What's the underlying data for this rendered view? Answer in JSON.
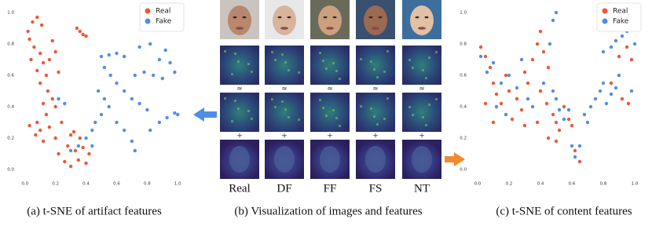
{
  "chart_data": [
    {
      "type": "scatter",
      "legend": "upper right",
      "grid": false,
      "xlim": [
        -0.05,
        1.05
      ],
      "ylim": [
        -0.05,
        1.05
      ],
      "xticks": [
        {
          "value": 0,
          "label": "0.0"
        },
        0.2,
        0.4,
        0.6,
        0.8,
        {
          "value": 1,
          "label": "1.0"
        }
      ],
      "yticks": [
        {
          "value": 0,
          "label": "0.0"
        },
        0.2,
        0.4,
        0.6,
        0.8,
        {
          "value": 1,
          "label": "1.0"
        }
      ],
      "series": [
        {
          "name": "Real",
          "color": "#ef5635",
          "x": [
            0.02,
            0.05,
            0.03,
            0.08,
            0.11,
            0.06,
            0.1,
            0.04,
            0.12,
            0.08,
            0.14,
            0.18,
            0.2,
            0.16,
            0.22,
            0.1,
            0.15,
            0.18,
            0.12,
            0.2,
            0.14,
            0.08,
            0.03,
            0.1,
            0.16,
            0.2,
            0.12,
            0.07,
            0.24,
            0.22,
            0.26,
            0.3,
            0.35,
            0.4,
            0.33,
            0.28,
            0.38,
            0.42,
            0.3,
            0.36,
            0.38,
            0.4,
            0.34,
            0.32,
            0.36
          ],
          "values": [
            0.88,
            0.94,
            0.83,
            0.97,
            0.92,
            0.78,
            0.74,
            0.7,
            0.68,
            0.63,
            0.6,
            0.82,
            0.75,
            0.7,
            0.62,
            0.55,
            0.5,
            0.45,
            0.42,
            0.4,
            0.35,
            0.3,
            0.28,
            0.25,
            0.27,
            0.2,
            0.18,
            0.22,
            0.3,
            0.1,
            0.05,
            0.02,
            0.06,
            0.04,
            0.12,
            0.15,
            0.14,
            0.1,
            0.22,
            0.88,
            0.86,
            0.85,
            0.9,
            0.24,
            0.2
          ]
        },
        {
          "name": "Fake",
          "color": "#4f8fe3",
          "x": [
            0.5,
            0.55,
            0.6,
            0.65,
            0.52,
            0.56,
            0.6,
            0.48,
            0.52,
            0.55,
            0.5,
            0.46,
            0.44,
            0.4,
            0.44,
            0.35,
            0.3,
            0.65,
            0.7,
            0.75,
            0.8,
            0.72,
            0.78,
            0.84,
            0.9,
            0.88,
            0.92,
            0.95,
            0.98,
            0.82,
            0.88,
            0.93,
            0.98,
            1.0,
            0.65,
            0.7,
            0.72,
            0.6,
            0.22,
            0.26,
            0.75,
            0.82
          ],
          "values": [
            0.72,
            0.73,
            0.74,
            0.72,
            0.65,
            0.6,
            0.55,
            0.5,
            0.45,
            0.4,
            0.35,
            0.3,
            0.25,
            0.2,
            0.15,
            0.15,
            0.12,
            0.5,
            0.45,
            0.42,
            0.38,
            0.6,
            0.62,
            0.6,
            0.58,
            0.7,
            0.76,
            0.68,
            0.62,
            0.25,
            0.3,
            0.33,
            0.36,
            0.35,
            0.25,
            0.18,
            0.12,
            0.3,
            0.45,
            0.42,
            0.78,
            0.8
          ]
        }
      ]
    },
    {
      "type": "scatter",
      "legend": "upper right",
      "grid": false,
      "xlim": [
        -0.05,
        1.05
      ],
      "ylim": [
        -0.05,
        1.05
      ],
      "xticks": [
        {
          "value": 0,
          "label": "0.0"
        },
        0.2,
        0.4,
        0.6,
        0.8,
        {
          "value": 1,
          "label": "1.0"
        }
      ],
      "yticks": [
        {
          "value": 0,
          "label": "0.0"
        },
        0.2,
        0.4,
        0.6,
        0.8,
        {
          "value": 1,
          "label": "1.0"
        }
      ],
      "series": [
        {
          "name": "Real",
          "color": "#ef5635",
          "x": [
            0.02,
            0.05,
            0.08,
            0.1,
            0.12,
            0.15,
            0.18,
            0.2,
            0.25,
            0.28,
            0.3,
            0.32,
            0.35,
            0.38,
            0.4,
            0.42,
            0.45,
            0.4,
            0.44,
            0.48,
            0.5,
            0.45,
            0.5,
            0.52,
            0.55,
            0.58,
            0.6,
            0.38,
            0.3,
            0.22,
            0.65,
            0.62,
            0.9,
            0.95,
            0.98,
            0.92,
            0.96,
            0.85,
            0.1,
            0.05
          ],
          "values": [
            0.78,
            0.72,
            0.65,
            0.55,
            0.48,
            0.42,
            0.6,
            0.5,
            0.45,
            0.38,
            0.62,
            0.55,
            0.7,
            0.8,
            0.88,
            0.75,
            0.65,
            0.5,
            0.42,
            0.35,
            0.3,
            0.2,
            0.18,
            0.25,
            0.4,
            0.32,
            0.28,
            0.3,
            0.28,
            0.32,
            0.05,
            0.12,
            0.72,
            0.78,
            0.7,
            0.45,
            0.42,
            0.55,
            0.3,
            0.42
          ]
        },
        {
          "name": "Fake",
          "color": "#4f8fe3",
          "x": [
            0.02,
            0.06,
            0.1,
            0.15,
            0.2,
            0.25,
            0.28,
            0.32,
            0.35,
            0.42,
            0.46,
            0.48,
            0.5,
            0.52,
            0.55,
            0.58,
            0.48,
            0.5,
            0.6,
            0.62,
            0.65,
            0.68,
            0.72,
            0.75,
            0.78,
            0.8,
            0.82,
            0.85,
            0.88,
            0.8,
            0.85,
            0.88,
            0.92,
            0.95,
            1.0,
            0.98,
            0.9,
            0.7,
            0.12,
            0.18
          ],
          "values": [
            0.72,
            0.62,
            0.68,
            0.55,
            0.6,
            0.52,
            0.7,
            0.45,
            0.4,
            0.55,
            0.8,
            0.5,
            0.45,
            0.38,
            0.32,
            0.38,
            0.95,
            1.0,
            0.15,
            0.08,
            0.15,
            0.35,
            0.4,
            0.45,
            0.5,
            0.55,
            0.42,
            0.48,
            0.52,
            0.75,
            0.78,
            0.82,
            0.85,
            0.88,
            0.8,
            0.5,
            0.6,
            0.3,
            0.4,
            0.35
          ]
        }
      ]
    }
  ],
  "figure": {
    "columns": [
      "Real",
      "DF",
      "FF",
      "FS",
      "NT"
    ],
    "approx_symbol": "≈",
    "plus_symbol": "+",
    "captions": [
      "(a) t-SNE of artifact features",
      "(b) Visualization of images and features",
      "(c) t-SNE of content features"
    ]
  }
}
